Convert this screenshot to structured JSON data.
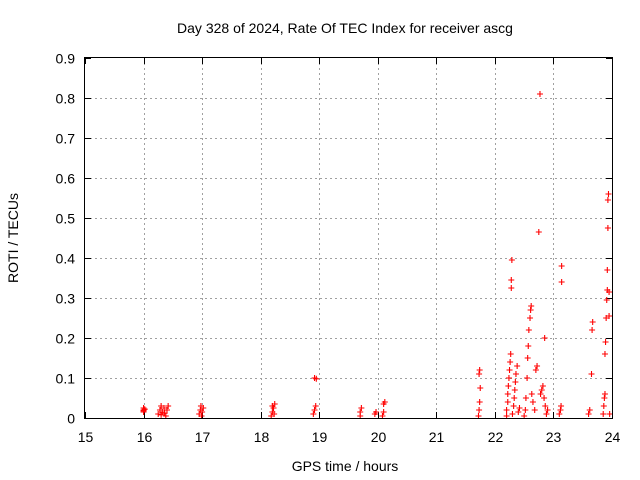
{
  "chart_data": {
    "type": "scatter",
    "title": "Day 328 of 2024, Rate Of TEC Index for receiver ascg",
    "xlabel": "GPS time / hours",
    "ylabel": "ROTI / TECUs",
    "xlim": [
      15,
      24
    ],
    "ylim": [
      0,
      0.9
    ],
    "xticks": [
      "15",
      "16",
      "17",
      "18",
      "19",
      "20",
      "21",
      "22",
      "23",
      "24"
    ],
    "yticks": [
      "0",
      "0.1",
      "0.2",
      "0.3",
      "0.4",
      "0.5",
      "0.6",
      "0.7",
      "0.8",
      "0.9"
    ],
    "grid": true,
    "marker": "plus",
    "series": [
      {
        "name": "ROTI",
        "color": "#ff0000",
        "points": [
          [
            16.0,
            0.015
          ],
          [
            16.0,
            0.02
          ],
          [
            16.0,
            0.025
          ],
          [
            16.0,
            0.018
          ],
          [
            16.02,
            0.022
          ],
          [
            16.25,
            0.01
          ],
          [
            16.28,
            0.02
          ],
          [
            16.3,
            0.03
          ],
          [
            16.32,
            0.015
          ],
          [
            16.35,
            0.025
          ],
          [
            16.38,
            0.005
          ],
          [
            16.4,
            0.02
          ],
          [
            16.42,
            0.03
          ],
          [
            16.3,
            0.008
          ],
          [
            16.36,
            0.012
          ],
          [
            16.95,
            0.01
          ],
          [
            16.97,
            0.02
          ],
          [
            16.98,
            0.03
          ],
          [
            17.0,
            0.015
          ],
          [
            17.02,
            0.025
          ],
          [
            16.99,
            0.005
          ],
          [
            18.18,
            0.005
          ],
          [
            18.2,
            0.015
          ],
          [
            18.22,
            0.025
          ],
          [
            18.24,
            0.035
          ],
          [
            18.2,
            0.03
          ],
          [
            18.23,
            0.01
          ],
          [
            18.9,
            0.01
          ],
          [
            18.92,
            0.02
          ],
          [
            18.94,
            0.03
          ],
          [
            18.92,
            0.1
          ],
          [
            18.95,
            0.098
          ],
          [
            19.7,
            0.005
          ],
          [
            19.7,
            0.015
          ],
          [
            19.72,
            0.025
          ],
          [
            19.95,
            0.01
          ],
          [
            19.97,
            0.015
          ],
          [
            20.08,
            0.005
          ],
          [
            20.1,
            0.015
          ],
          [
            20.1,
            0.035
          ],
          [
            20.12,
            0.04
          ],
          [
            21.72,
            0.005
          ],
          [
            21.73,
            0.02
          ],
          [
            21.74,
            0.04
          ],
          [
            21.75,
            0.075
          ],
          [
            21.73,
            0.11
          ],
          [
            21.74,
            0.12
          ],
          [
            22.2,
            0.005
          ],
          [
            22.2,
            0.02
          ],
          [
            22.22,
            0.04
          ],
          [
            22.22,
            0.06
          ],
          [
            22.23,
            0.08
          ],
          [
            22.24,
            0.1
          ],
          [
            22.25,
            0.12
          ],
          [
            22.26,
            0.14
          ],
          [
            22.27,
            0.16
          ],
          [
            22.28,
            0.325
          ],
          [
            22.28,
            0.345
          ],
          [
            22.29,
            0.395
          ],
          [
            22.3,
            0.01
          ],
          [
            22.32,
            0.03
          ],
          [
            22.33,
            0.05
          ],
          [
            22.34,
            0.07
          ],
          [
            22.35,
            0.09
          ],
          [
            22.36,
            0.11
          ],
          [
            22.38,
            0.13
          ],
          [
            22.4,
            0.015
          ],
          [
            22.42,
            0.025
          ],
          [
            22.5,
            0.005
          ],
          [
            22.52,
            0.02
          ],
          [
            22.53,
            0.05
          ],
          [
            22.55,
            0.1
          ],
          [
            22.56,
            0.15
          ],
          [
            22.57,
            0.18
          ],
          [
            22.58,
            0.22
          ],
          [
            22.6,
            0.25
          ],
          [
            22.61,
            0.27
          ],
          [
            22.62,
            0.28
          ],
          [
            22.63,
            0.06
          ],
          [
            22.65,
            0.04
          ],
          [
            22.68,
            0.02
          ],
          [
            22.7,
            0.12
          ],
          [
            22.72,
            0.13
          ],
          [
            22.75,
            0.465
          ],
          [
            22.77,
            0.81
          ],
          [
            22.78,
            0.06
          ],
          [
            22.8,
            0.07
          ],
          [
            22.82,
            0.08
          ],
          [
            22.84,
            0.05
          ],
          [
            22.85,
            0.2
          ],
          [
            22.86,
            0.03
          ],
          [
            22.88,
            0.01
          ],
          [
            22.9,
            0.02
          ],
          [
            23.1,
            0.01
          ],
          [
            23.12,
            0.02
          ],
          [
            23.13,
            0.03
          ],
          [
            23.14,
            0.34
          ],
          [
            23.14,
            0.38
          ],
          [
            23.6,
            0.01
          ],
          [
            23.62,
            0.02
          ],
          [
            23.65,
            0.11
          ],
          [
            23.66,
            0.22
          ],
          [
            23.67,
            0.24
          ],
          [
            23.85,
            0.01
          ],
          [
            23.86,
            0.03
          ],
          [
            23.87,
            0.05
          ],
          [
            23.88,
            0.06
          ],
          [
            23.88,
            0.16
          ],
          [
            23.89,
            0.19
          ],
          [
            23.9,
            0.25
          ],
          [
            23.91,
            0.295
          ],
          [
            23.92,
            0.32
          ],
          [
            23.92,
            0.37
          ],
          [
            23.93,
            0.475
          ],
          [
            23.93,
            0.545
          ],
          [
            23.94,
            0.56
          ],
          [
            23.95,
            0.315
          ],
          [
            23.95,
            0.255
          ],
          [
            23.96,
            0.01
          ]
        ]
      }
    ]
  }
}
